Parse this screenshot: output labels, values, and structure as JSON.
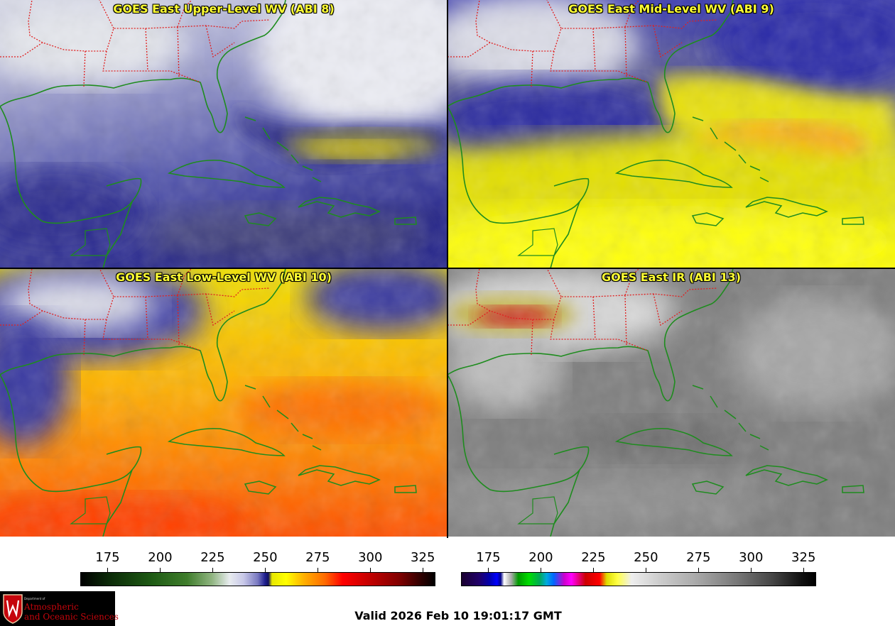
{
  "panels": [
    {
      "title": "GOES East Upper-Level WV (ABI 8)",
      "colormap": "water-vapor"
    },
    {
      "title": "GOES East Mid-Level WV (ABI 9)",
      "colormap": "water-vapor"
    },
    {
      "title": "GOES East Low-Level WV (ABI 10)",
      "colormap": "water-vapor"
    },
    {
      "title": "GOES East IR (ABI 13)",
      "colormap": "infrared"
    }
  ],
  "colorbars": [
    {
      "name": "water-vapor",
      "ticks": [
        "175",
        "200",
        "225",
        "250",
        "275",
        "300",
        "325"
      ],
      "range": [
        162,
        331
      ]
    },
    {
      "name": "infrared",
      "ticks": [
        "175",
        "200",
        "225",
        "250",
        "275",
        "300",
        "325"
      ],
      "range": [
        162,
        331
      ]
    }
  ],
  "logo": {
    "dept_line": "Department of",
    "line1": "Atmospheric",
    "line2": "and Oceanic Sciences"
  },
  "valid_time": "Valid 2026 Feb 10 19:01:17 GMT",
  "colors": {
    "title": "#ffff33",
    "coastline": "#1e8c1e",
    "state_border": "#e02020",
    "logo_red": "#c5050c"
  }
}
